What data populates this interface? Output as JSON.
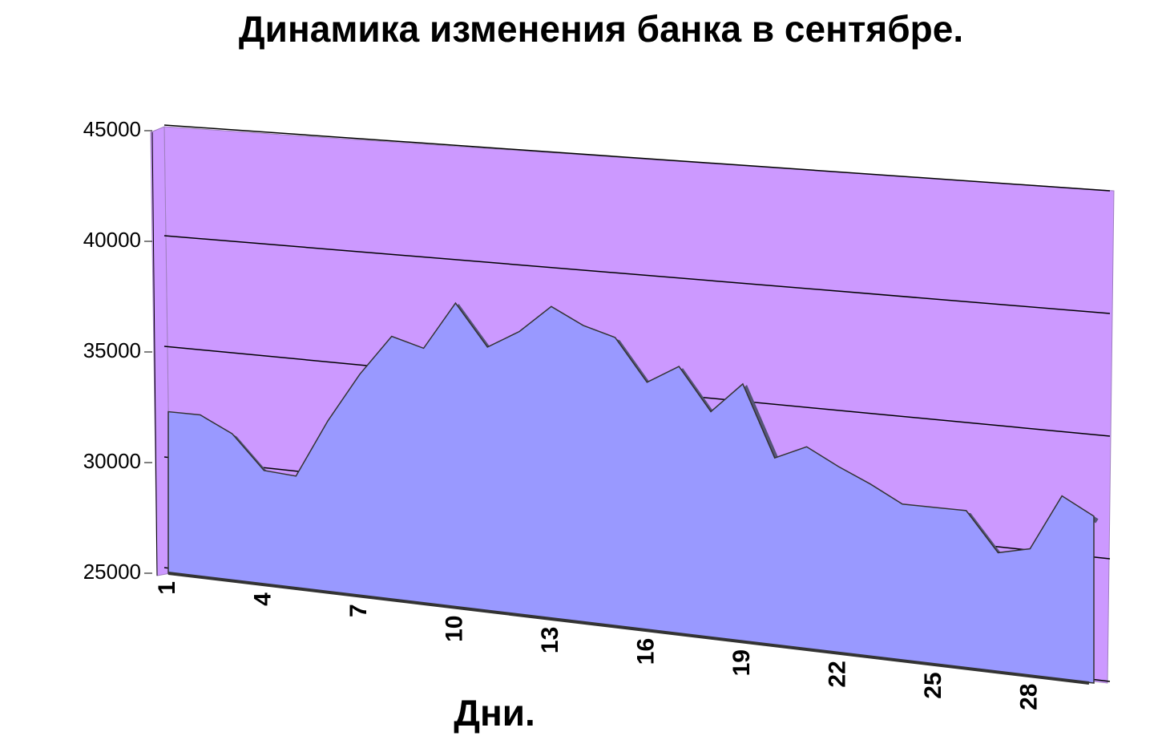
{
  "chart_data": {
    "type": "area3d",
    "title": "Динамика изменения банка в сентябре.",
    "x_label": "Дни.",
    "categories": [
      1,
      null,
      null,
      4,
      null,
      null,
      7,
      null,
      null,
      10,
      null,
      null,
      13,
      null,
      null,
      16,
      null,
      null,
      19,
      null,
      null,
      22,
      null,
      null,
      25,
      null,
      null,
      28,
      null,
      null
    ],
    "values": [
      32300,
      32300,
      31600,
      30100,
      30000,
      32600,
      34800,
      36600,
      36200,
      38300,
      36500,
      37300,
      38500,
      37800,
      37400,
      35600,
      36400,
      34600,
      35900,
      32900,
      33500,
      32800,
      32200,
      31500,
      31500,
      31500,
      29900,
      30200,
      32500,
      31800
    ],
    "color": "#9999ff",
    "wall_color": "#cc99ff",
    "ylim": [
      25000,
      45000
    ],
    "yticks": [
      25000,
      30000,
      35000,
      40000,
      45000
    ],
    "grid": true
  }
}
